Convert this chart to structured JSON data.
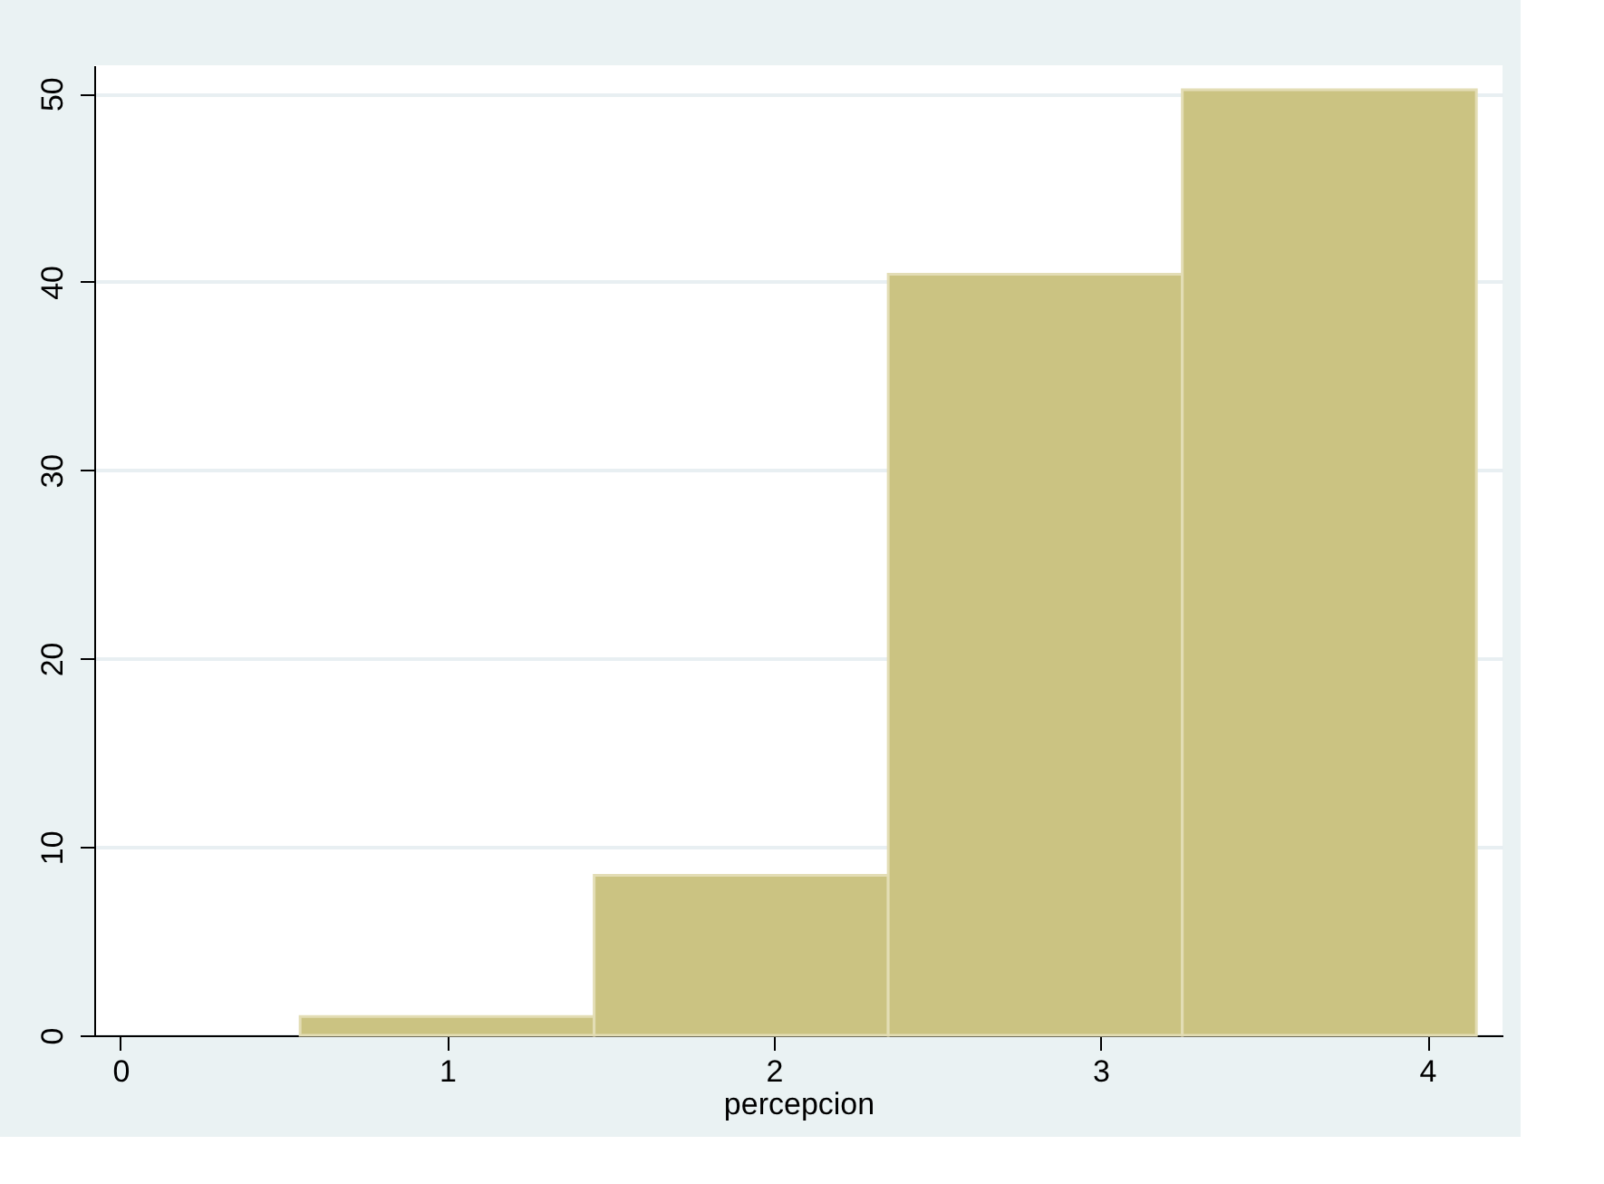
{
  "chart_data": {
    "type": "histogram",
    "xlabel": "percepcion",
    "bins": [
      0.55,
      1.45,
      2.35,
      3.25,
      4.15
    ],
    "values": [
      1.0,
      8.5,
      40.4,
      50.2
    ],
    "color": "#cbc382",
    "xlim": [
      -0.08,
      4.23
    ],
    "xticks": [
      0,
      1,
      2,
      3,
      4
    ],
    "ylim": [
      0,
      51.5
    ],
    "yticks": [
      0,
      10,
      20,
      30,
      40,
      50
    ],
    "grid": "y"
  }
}
